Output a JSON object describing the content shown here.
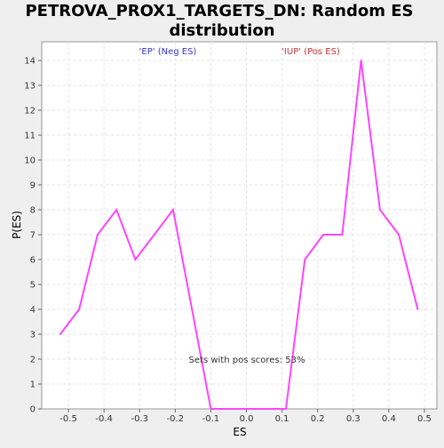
{
  "chart_data": {
    "type": "line",
    "title_lines": [
      "PETROVA_PROX1_TARGETS_DN: Random ES",
      "distribution"
    ],
    "xlabel": "ES",
    "ylabel": "P(ES)",
    "xlim": [
      -0.575,
      0.535
    ],
    "ylim": [
      0,
      14.75
    ],
    "x_ticks": [
      -0.5,
      -0.4,
      -0.3,
      -0.2,
      -0.1,
      0.0,
      0.1,
      0.2,
      0.3,
      0.4,
      0.5
    ],
    "x_tick_labels": [
      "-0.5",
      "-0.4",
      "-0.3",
      "-0.2",
      "-0.1",
      "0.0",
      "0.1",
      "0.2",
      "0.3",
      "0.4",
      "0.5"
    ],
    "y_ticks": [
      0,
      1,
      2,
      3,
      4,
      5,
      6,
      7,
      8,
      9,
      10,
      11,
      12,
      13,
      14
    ],
    "y_tick_labels": [
      "0",
      "1",
      "2",
      "3",
      "4",
      "5",
      "6",
      "7",
      "8",
      "9",
      "10",
      "11",
      "12",
      "13",
      "14"
    ],
    "grid": true,
    "series": [
      {
        "name": "P(ES)",
        "color": "#ff44ff",
        "x": [
          -0.523,
          -0.47,
          -0.418,
          -0.365,
          -0.312,
          -0.259,
          -0.206,
          -0.153,
          -0.1,
          -0.048,
          0.005,
          0.058,
          0.111,
          0.164,
          0.216,
          0.269,
          0.322,
          0.375,
          0.428,
          0.481
        ],
        "y": [
          3,
          4,
          7,
          8,
          6,
          7,
          8,
          4,
          0,
          0,
          0,
          0,
          0,
          6,
          7,
          7,
          14,
          8,
          7,
          4
        ]
      }
    ],
    "annotations": [
      {
        "id": "ep",
        "text": "'EP' (Neg ES)",
        "color": "#3333cc"
      },
      {
        "id": "iup",
        "text": "'IUP' (Pos ES)",
        "color": "#cc3333"
      },
      {
        "id": "pos",
        "text": "Sets with pos scores: 53%",
        "color": "#333333"
      }
    ]
  }
}
